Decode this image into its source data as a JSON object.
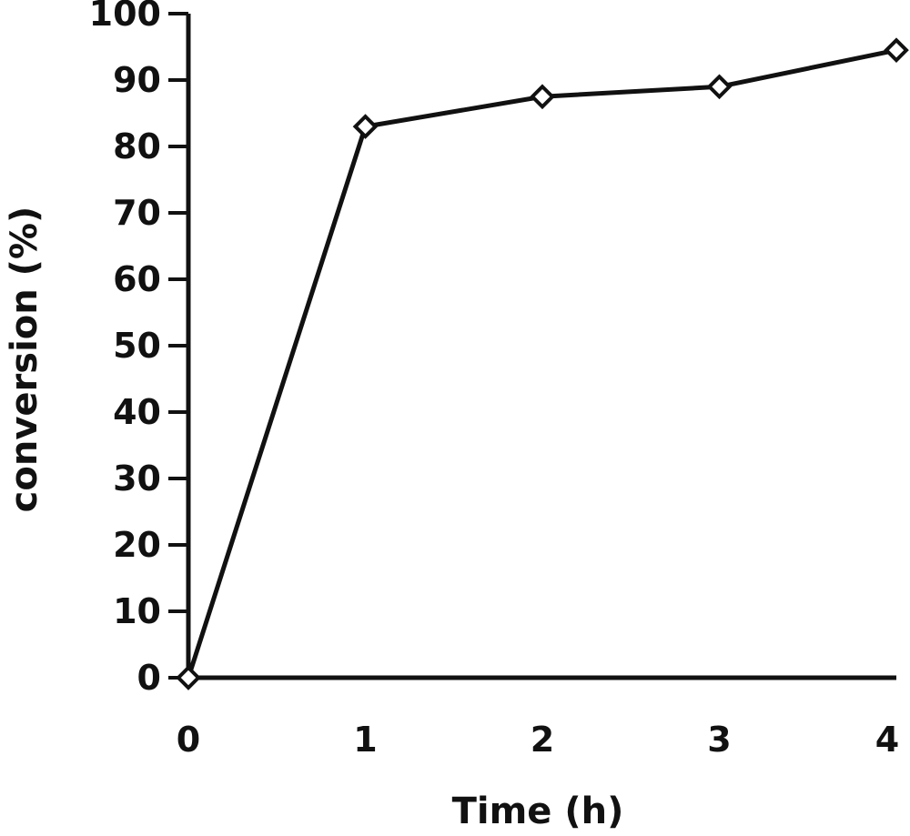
{
  "chart_data": {
    "type": "line",
    "title": "",
    "xlabel": "Time (h)",
    "ylabel": "conversion (%)",
    "x": [
      0,
      1,
      2,
      3,
      4
    ],
    "series": [
      {
        "values": [
          0,
          83,
          87.5,
          89,
          94.5
        ]
      }
    ],
    "xlim": [
      0,
      4
    ],
    "ylim": [
      0,
      100
    ],
    "xticks": [
      "0",
      "1",
      "2",
      "3",
      "4"
    ],
    "yticks": [
      "0",
      "10",
      "20",
      "30",
      "40",
      "50",
      "60",
      "70",
      "80",
      "90",
      "100"
    ],
    "marker": "open-diamond",
    "grid": false,
    "legend": "none",
    "line_color": "#111111"
  }
}
